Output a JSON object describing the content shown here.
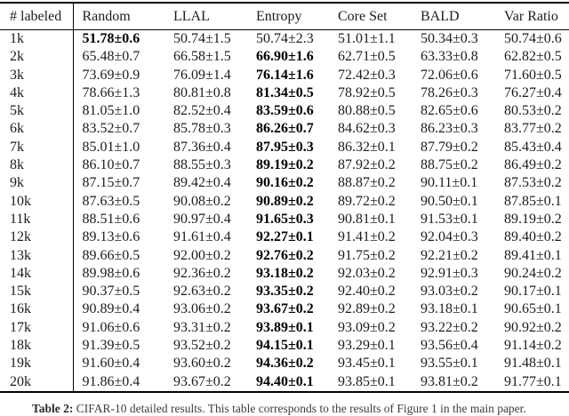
{
  "table": {
    "columns": [
      "# labeled",
      "Random",
      "LLAL",
      "Entropy",
      "Core Set",
      "BALD",
      "Var Ratio"
    ],
    "rows": [
      {
        "label": "1k",
        "values": [
          "51.78±0.6",
          "50.74±1.5",
          "50.74±2.3",
          "51.01±1.1",
          "50.34±0.3",
          "50.74±0.6"
        ],
        "bold": 0
      },
      {
        "label": "2k",
        "values": [
          "65.48±0.7",
          "66.58±1.5",
          "66.90±1.6",
          "62.71±0.5",
          "63.33±0.8",
          "62.82±0.5"
        ],
        "bold": 2
      },
      {
        "label": "3k",
        "values": [
          "73.69±0.9",
          "76.09±1.4",
          "76.14±1.6",
          "72.42±0.3",
          "72.06±0.6",
          "71.60±0.5"
        ],
        "bold": 2
      },
      {
        "label": "4k",
        "values": [
          "78.66±1.3",
          "80.81±0.8",
          "81.34±0.5",
          "78.92±0.5",
          "78.26±0.3",
          "76.27±0.4"
        ],
        "bold": 2
      },
      {
        "label": "5k",
        "values": [
          "81.05±1.0",
          "82.52±0.4",
          "83.59±0.6",
          "80.88±0.5",
          "82.65±0.6",
          "80.53±0.2"
        ],
        "bold": 2
      },
      {
        "label": "6k",
        "values": [
          "83.52±0.7",
          "85.78±0.3",
          "86.26±0.7",
          "84.62±0.3",
          "86.23±0.3",
          "83.77±0.2"
        ],
        "bold": 2
      },
      {
        "label": "7k",
        "values": [
          "85.01±1.0",
          "87.36±0.4",
          "87.95±0.3",
          "86.32±0.1",
          "87.79±0.2",
          "85.43±0.4"
        ],
        "bold": 2
      },
      {
        "label": "8k",
        "values": [
          "86.10±0.7",
          "88.55±0.3",
          "89.19±0.2",
          "87.92±0.2",
          "88.75±0.2",
          "86.49±0.2"
        ],
        "bold": 2
      },
      {
        "label": "9k",
        "values": [
          "87.15±0.7",
          "89.42±0.4",
          "90.16±0.2",
          "88.87±0.2",
          "90.11±0.1",
          "87.53±0.2"
        ],
        "bold": 2
      },
      {
        "label": "10k",
        "values": [
          "87.63±0.5",
          "90.08±0.2",
          "90.89±0.2",
          "89.72±0.2",
          "90.50±0.1",
          "87.85±0.1"
        ],
        "bold": 2
      },
      {
        "label": "11k",
        "values": [
          "88.51±0.6",
          "90.97±0.4",
          "91.65±0.3",
          "90.81±0.1",
          "91.53±0.1",
          "89.19±0.2"
        ],
        "bold": 2
      },
      {
        "label": "12k",
        "values": [
          "89.13±0.6",
          "91.61±0.4",
          "92.27±0.1",
          "91.41±0.2",
          "92.04±0.3",
          "89.40±0.2"
        ],
        "bold": 2
      },
      {
        "label": "13k",
        "values": [
          "89.66±0.5",
          "92.00±0.2",
          "92.76±0.2",
          "91.75±0.2",
          "92.21±0.2",
          "89.41±0.1"
        ],
        "bold": 2
      },
      {
        "label": "14k",
        "values": [
          "89.98±0.6",
          "92.36±0.2",
          "93.18±0.2",
          "92.03±0.2",
          "92.91±0.3",
          "90.24±0.2"
        ],
        "bold": 2
      },
      {
        "label": "15k",
        "values": [
          "90.37±0.5",
          "92.63±0.2",
          "93.35±0.2",
          "92.40±0.2",
          "93.03±0.2",
          "90.17±0.1"
        ],
        "bold": 2
      },
      {
        "label": "16k",
        "values": [
          "90.89±0.4",
          "93.06±0.2",
          "93.67±0.2",
          "92.89±0.2",
          "93.18±0.1",
          "90.65±0.1"
        ],
        "bold": 2
      },
      {
        "label": "17k",
        "values": [
          "91.06±0.6",
          "93.31±0.2",
          "93.89±0.1",
          "93.09±0.2",
          "93.22±0.2",
          "90.92±0.2"
        ],
        "bold": 2
      },
      {
        "label": "18k",
        "values": [
          "91.39±0.5",
          "93.52±0.2",
          "94.15±0.1",
          "93.29±0.1",
          "93.56±0.4",
          "91.14±0.2"
        ],
        "bold": 2
      },
      {
        "label": "19k",
        "values": [
          "91.60±0.4",
          "93.60±0.2",
          "94.36±0.2",
          "93.45±0.1",
          "93.55±0.1",
          "91.48±0.1"
        ],
        "bold": 2
      },
      {
        "label": "20k",
        "values": [
          "91.86±0.4",
          "93.67±0.2",
          "94.40±0.1",
          "93.85±0.1",
          "93.81±0.2",
          "91.77±0.1"
        ],
        "bold": 2
      }
    ]
  },
  "caption": {
    "label": "Table 2:",
    "text": " CIFAR-10 detailed results. This table corresponds to the results of Figure 1 in the main paper.",
    "note": "caption line is clipped at the bottom edge of the screenshot"
  }
}
